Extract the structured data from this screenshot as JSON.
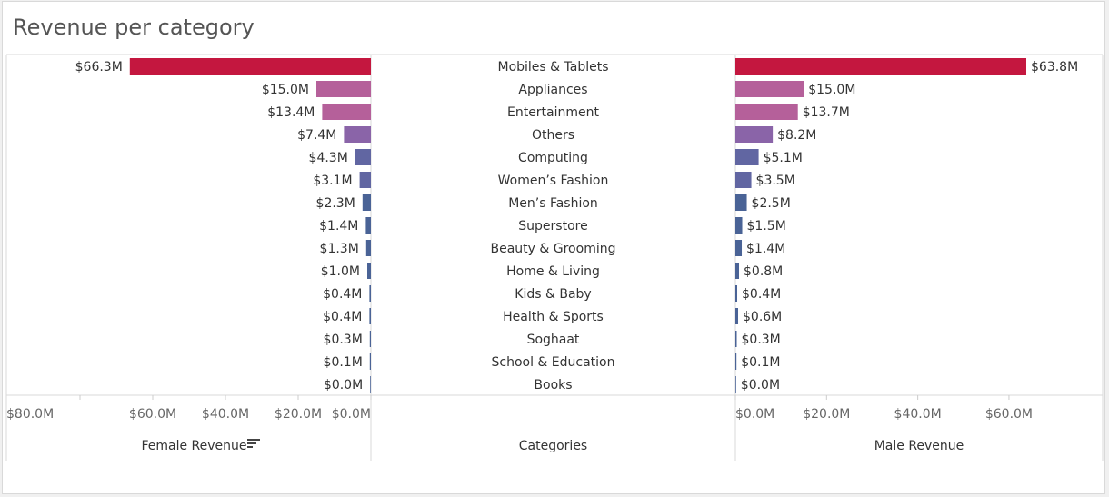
{
  "title": "Revenue per category",
  "colors": {
    "panel_border": "#dadada",
    "text": "#333333",
    "axis_text": "#666666",
    "tick": "#cccccc",
    "bar_gradient": [
      "#c4173f",
      "#b5609a",
      "#8a64a8",
      "#6166a2",
      "#4a6396"
    ]
  },
  "chart_data": {
    "type": "bar",
    "orientation": "horizontal",
    "categories": [
      "Mobiles & Tablets",
      "Appliances",
      "Entertainment",
      "Others",
      "Computing",
      "Women’s Fashion",
      "Men’s Fashion",
      "Superstore",
      "Beauty & Grooming",
      "Home & Living",
      "Kids & Baby",
      "Health & Sports",
      "Soghaat",
      "School & Education",
      "Books"
    ],
    "series": [
      {
        "name": "Female Revenue",
        "values": [
          66.3,
          15.0,
          13.4,
          7.4,
          4.3,
          3.1,
          2.3,
          1.4,
          1.3,
          1.0,
          0.4,
          0.4,
          0.3,
          0.1,
          0.0
        ],
        "labels": [
          "$66.3M",
          "$15.0M",
          "$13.4M",
          "$7.4M",
          "$4.3M",
          "$3.1M",
          "$2.3M",
          "$1.4M",
          "$1.3M",
          "$1.0M",
          "$0.4M",
          "$0.4M",
          "$0.3M",
          "$0.1M",
          "$0.0M"
        ],
        "axis_ticks": [
          80,
          60,
          40,
          20,
          0
        ],
        "axis_tick_labels": [
          "$80.0M",
          "$60.0M",
          "$40.0M",
          "$20.0M",
          "$0.0M"
        ],
        "xlim": [
          0,
          83
        ],
        "direction": "reversed"
      },
      {
        "name": "Male Revenue",
        "values": [
          63.8,
          15.0,
          13.7,
          8.2,
          5.1,
          3.5,
          2.5,
          1.5,
          1.4,
          0.8,
          0.4,
          0.6,
          0.3,
          0.1,
          0.0
        ],
        "labels": [
          "$63.8M",
          "$15.0M",
          "$13.7M",
          "$8.2M",
          "$5.1M",
          "$3.5M",
          "$2.5M",
          "$1.5M",
          "$1.4M",
          "$0.8M",
          "$0.4M",
          "$0.6M",
          "$0.3M",
          "$0.1M",
          "$0.0M"
        ],
        "axis_ticks": [
          0,
          20,
          40,
          60
        ],
        "axis_tick_labels": [
          "$0.0M",
          "$20.0M",
          "$40.0M",
          "$60.0M"
        ],
        "xlim": [
          0,
          80
        ],
        "direction": "normal"
      }
    ],
    "column_headers": {
      "left": "Female Revenue",
      "middle": "Categories",
      "right": "Male Revenue"
    },
    "sort_icon": "sort-descending-icon",
    "grid": false
  }
}
